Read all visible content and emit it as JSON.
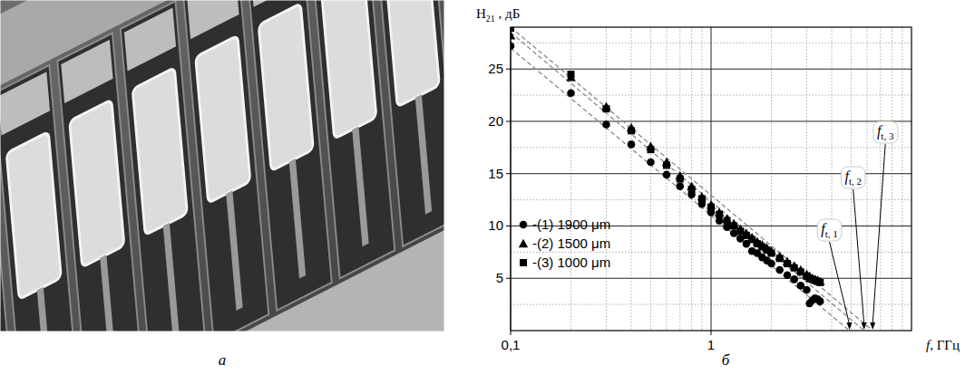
{
  "panel_letters": [
    "а",
    "б"
  ],
  "chart_data": {
    "type": "scatter",
    "ylabel": {
      "main": "H",
      "sub": "21",
      "rest": " , дБ"
    },
    "xlabel": {
      "main": "f",
      "rest": ", ГГц"
    },
    "log": "x",
    "grid": true,
    "legend": "lower left",
    "xlim": [
      0.1,
      10
    ],
    "ylim": [
      0,
      29
    ],
    "xticks": [
      {
        "value": 0.1,
        "label": "0,1"
      },
      1
    ],
    "yticks": [
      5,
      10,
      15,
      20,
      25
    ],
    "series": [
      {
        "name": "-(1) 1900 μm",
        "marker": "circle",
        "color": "#000000",
        "x": [
          0.1,
          0.2,
          0.3,
          0.4,
          0.5,
          0.6,
          0.7,
          0.8,
          0.9,
          1.0,
          1.1,
          1.2,
          1.3,
          1.4,
          1.5,
          1.6,
          1.7,
          1.8,
          1.9,
          2.0,
          2.2,
          2.4,
          2.6,
          2.8,
          3.0,
          3.1,
          3.2,
          3.3,
          3.4,
          3.5
        ],
        "values": [
          27.2,
          22.7,
          19.7,
          17.8,
          16.1,
          14.9,
          13.8,
          13.0,
          12.1,
          11.3,
          10.5,
          9.9,
          9.3,
          8.8,
          8.3,
          7.6,
          7.4,
          7.0,
          6.7,
          6.4,
          5.8,
          5.3,
          4.9,
          4.3,
          3.9,
          2.6,
          2.9,
          3.1,
          3.0,
          2.8
        ]
      },
      {
        "name": "-(2) 1500 μm",
        "marker": "triangle",
        "color": "#000000",
        "x": [
          0.1,
          0.2,
          0.3,
          0.4,
          0.5,
          0.6,
          0.7,
          0.8,
          0.9,
          1.0,
          1.1,
          1.2,
          1.3,
          1.4,
          1.5,
          1.6,
          1.7,
          1.8,
          1.9,
          2.0,
          2.2,
          2.4,
          2.6,
          2.8,
          3.0,
          3.1,
          3.2,
          3.3,
          3.4,
          3.5
        ],
        "values": [
          28.2,
          24.2,
          21.4,
          19.4,
          17.6,
          16.1,
          14.8,
          13.8,
          12.8,
          12.0,
          11.3,
          10.7,
          10.2,
          9.7,
          9.3,
          8.9,
          8.5,
          8.2,
          7.9,
          7.6,
          7.1,
          6.6,
          6.2,
          5.8,
          5.4,
          5.2,
          5.0,
          4.9,
          4.8,
          4.7
        ]
      },
      {
        "name": "-(3) 1000 μm",
        "marker": "square",
        "color": "#000000",
        "x": [
          0.1,
          0.2,
          0.3,
          0.4,
          0.5,
          0.6,
          0.7,
          0.8,
          0.9,
          1.0,
          1.1,
          1.2,
          1.3,
          1.4,
          1.5,
          1.6,
          1.7,
          1.8,
          1.9,
          2.0,
          2.2,
          2.4,
          2.6,
          2.8,
          3.0,
          3.1,
          3.2,
          3.3,
          3.4,
          3.5
        ],
        "values": [
          28.9,
          24.5,
          21.2,
          19.1,
          17.3,
          15.8,
          14.5,
          13.5,
          12.6,
          11.8,
          11.1,
          10.5,
          10.0,
          9.5,
          9.1,
          8.7,
          8.3,
          8.0,
          7.7,
          7.4,
          6.9,
          6.4,
          6.0,
          5.6,
          5.2,
          5.0,
          4.9,
          4.8,
          4.7,
          4.6
        ]
      },
      {
        "type": "line",
        "line_style": "dashed",
        "color": "#8a8a8a",
        "x": [
          0.1,
          4.9
        ],
        "values": [
          27.0,
          0
        ]
      },
      {
        "type": "line",
        "line_style": "dashed",
        "color": "#8a8a8a",
        "x": [
          0.1,
          5.8
        ],
        "values": [
          28.5,
          0
        ]
      },
      {
        "type": "line",
        "line_style": "dashed",
        "color": "#8a8a8a",
        "x": [
          0.1,
          6.4
        ],
        "values": [
          29.0,
          0
        ]
      }
    ],
    "annotations": [
      {
        "main": "f",
        "sub": "t, 1",
        "x": 4.9
      },
      {
        "main": "f",
        "sub": "t, 2",
        "x": 5.8
      },
      {
        "main": "f",
        "sub": "t, 3",
        "x": 6.4
      }
    ]
  }
}
